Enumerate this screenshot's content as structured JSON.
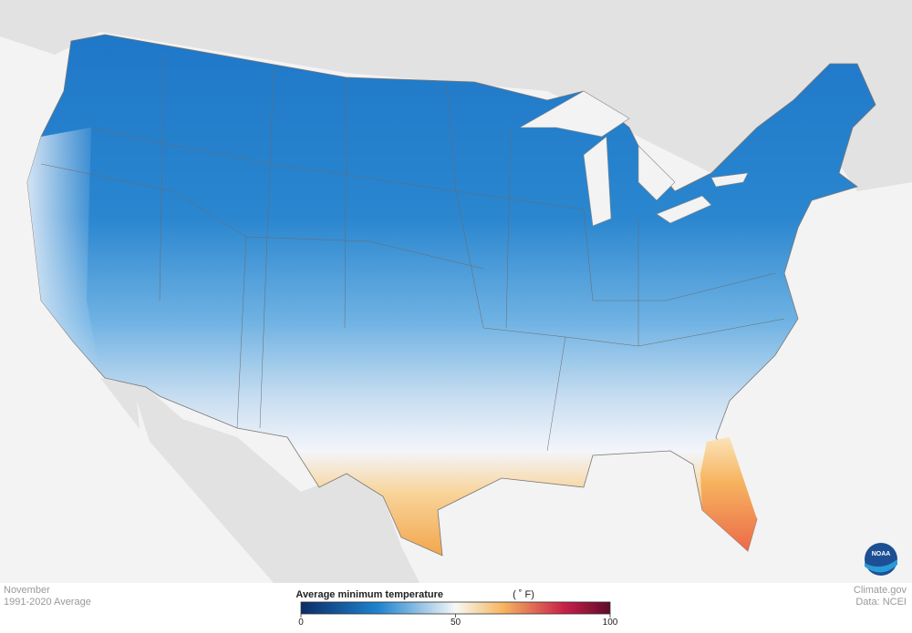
{
  "header": {
    "month": "November",
    "period": "1991-2020 Average"
  },
  "legend": {
    "title": "Average minimum temperature",
    "unit": "( ˚ F)",
    "range": [
      0,
      100
    ],
    "ticks": [
      0,
      50,
      100
    ]
  },
  "credits": {
    "site": "Climate.gov",
    "source": "Data: NCEI",
    "logo": "NOAA"
  }
}
